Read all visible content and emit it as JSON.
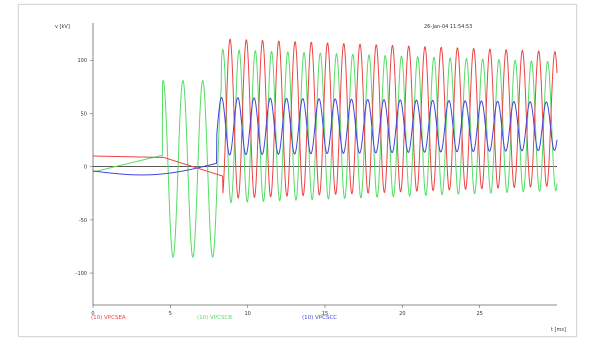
{
  "timestamp": "26-Jan-04 11:54:53",
  "colors": {
    "a": "#ee4444",
    "b": "#55dd66",
    "c": "#4444dd",
    "axis": "#666666",
    "zero": "#222222"
  },
  "chart_data": {
    "type": "line",
    "title": "",
    "xlabel": "t [ms]",
    "ylabel": "v [kV]",
    "xlim": [
      0,
      30
    ],
    "ylim": [
      -130,
      135
    ],
    "xticks": [
      0,
      5,
      10,
      15,
      20,
      25
    ],
    "yticks": [
      100,
      50,
      0,
      -50,
      -100
    ],
    "grid": false,
    "series": [
      {
        "name": "(10) VPCSEA",
        "color": "#ee4444",
        "description": "Starts near +10 kV before switching, decays to about -10 kV, then after ~8.4 ms oscillates at high frequency between about -30 and +120 kV, amplitude slowly decaying to about -5..+95 kV at 30 ms"
      },
      {
        "name": "(10) VPCSCB",
        "color": "#55dd66",
        "description": "Starts near -5 kV, jumps at ~4.5 ms into large oscillations (+80/-85 kV) until ~8.3 ms, then oscillates between about -35 and +110 kV, decaying toward -10..+90 kV"
      },
      {
        "name": "(10) VPCSCC",
        "color": "#4444dd",
        "description": "Starts near -5 kV, dips to about -10 kV, rises to ~+5 kV by 8 ms, then oscillates between about +12 and +65 kV, decaying toward +25..+55 kV"
      }
    ]
  },
  "legend": {
    "a": "(10) VPCSEA",
    "b": "(10) VPCSCB",
    "c": "(10) VPCSCC"
  }
}
